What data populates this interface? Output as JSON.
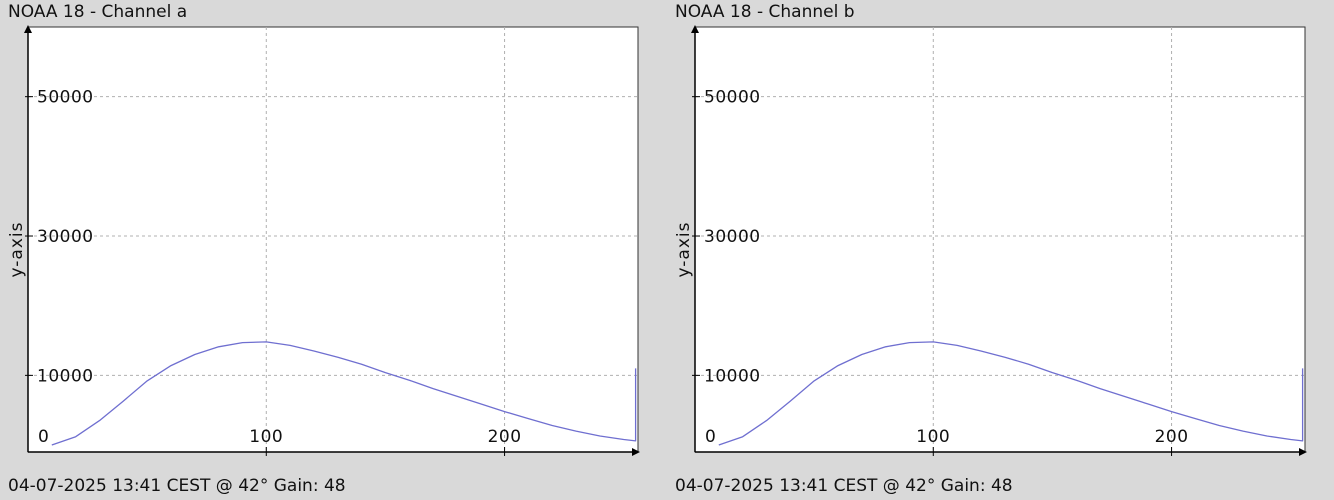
{
  "charts": [
    {
      "title": "NOAA 18 - Channel a",
      "footer": "04-07-2025 13:41 CEST @ 42° Gain: 48",
      "ylabel": "y-axis"
    },
    {
      "title": "NOAA 18 - Channel b",
      "footer": "04-07-2025 13:41 CEST @ 42° Gain: 48",
      "ylabel": "y-axis"
    }
  ],
  "colors": {
    "background": "#d9d9d9",
    "plot": "#ffffff",
    "line": "#6f6fd0",
    "grid": "#b0b0b0"
  },
  "chart_data": [
    {
      "type": "line",
      "title": "NOAA 18 - Channel a",
      "xlabel": "",
      "ylabel": "y-axis",
      "xlim": [
        0,
        256
      ],
      "ylim": [
        -1000,
        60000
      ],
      "x_ticks": [
        0,
        100,
        200
      ],
      "y_ticks": [
        10000,
        30000,
        50000
      ],
      "grid": true,
      "series": [
        {
          "x": [
            10,
            20,
            30,
            40,
            50,
            60,
            70,
            80,
            90,
            100,
            110,
            120,
            130,
            140,
            150,
            160,
            170,
            180,
            190,
            200,
            210,
            220,
            230,
            240,
            250,
            255,
            255
          ],
          "y": [
            0,
            1200,
            3500,
            6300,
            9200,
            11400,
            13000,
            14100,
            14700,
            14800,
            14300,
            13500,
            12600,
            11600,
            10400,
            9300,
            8100,
            7000,
            5900,
            4800,
            3800,
            2800,
            2000,
            1300,
            800,
            600,
            11000
          ]
        }
      ]
    },
    {
      "type": "line",
      "title": "NOAA 18 - Channel b",
      "xlabel": "",
      "ylabel": "y-axis",
      "xlim": [
        0,
        256
      ],
      "ylim": [
        -1000,
        60000
      ],
      "x_ticks": [
        0,
        100,
        200
      ],
      "y_ticks": [
        10000,
        30000,
        50000
      ],
      "grid": true,
      "series": [
        {
          "x": [
            10,
            20,
            30,
            40,
            50,
            60,
            70,
            80,
            90,
            100,
            110,
            120,
            130,
            140,
            150,
            160,
            170,
            180,
            190,
            200,
            210,
            220,
            230,
            240,
            250,
            255,
            255
          ],
          "y": [
            0,
            1200,
            3500,
            6300,
            9200,
            11400,
            13000,
            14100,
            14700,
            14800,
            14300,
            13500,
            12600,
            11600,
            10400,
            9300,
            8100,
            7000,
            5900,
            4800,
            3800,
            2800,
            2000,
            1300,
            800,
            600,
            11000
          ]
        }
      ]
    }
  ]
}
